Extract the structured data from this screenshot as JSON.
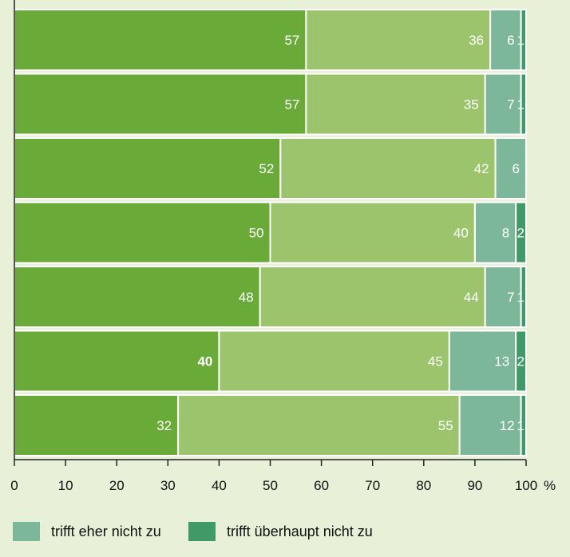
{
  "chart_data": {
    "type": "bar",
    "orientation": "horizontal",
    "stacked": true,
    "xlim": [
      0,
      100
    ],
    "x_ticks": [
      "0",
      "10",
      "20",
      "30",
      "40",
      "50",
      "60",
      "70",
      "80",
      "90",
      "100"
    ],
    "x_unit": "%",
    "series": [
      {
        "key": "s1",
        "color": "#6aaa38",
        "values": [
          57,
          57,
          52,
          50,
          48,
          40,
          32
        ]
      },
      {
        "key": "s2",
        "color": "#9cc46c",
        "values": [
          36,
          35,
          42,
          40,
          44,
          45,
          55
        ]
      },
      {
        "key": "s3",
        "name": "trifft eher nicht zu",
        "color": "#7db79a",
        "values": [
          6,
          7,
          6,
          8,
          7,
          13,
          12
        ]
      },
      {
        "key": "s4",
        "name": "trifft überhaupt nicht zu",
        "color": "#3f9a68",
        "values": [
          1,
          1,
          0,
          2,
          1,
          2,
          1
        ]
      }
    ],
    "data_labels": [
      [
        "57",
        "36",
        "6",
        "1"
      ],
      [
        "57",
        "35",
        "7",
        "1"
      ],
      [
        "52",
        "42",
        "6",
        ""
      ],
      [
        "50",
        "40",
        "8",
        "2"
      ],
      [
        "48",
        "44",
        "7",
        "1"
      ],
      [
        "40",
        "45",
        "13",
        "2"
      ],
      [
        "32",
        "55",
        "12",
        "1"
      ]
    ],
    "bold_labels": [
      [
        5,
        0
      ]
    ],
    "legend": {
      "placement": "bottom",
      "entries": [
        "trifft eher nicht zu",
        "trifft überhaupt nicht zu"
      ]
    }
  }
}
